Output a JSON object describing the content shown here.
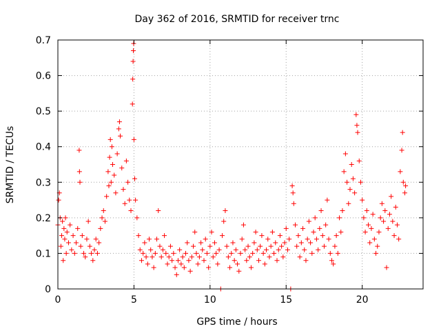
{
  "chart_data": {
    "type": "scatter",
    "title": "Day 362 of 2016, SRMTID for receiver trnc",
    "xlabel": "GPS time / hours",
    "ylabel": "SRMTID / TECUs",
    "xlim": [
      0,
      24
    ],
    "ylim": [
      0,
      0.7
    ],
    "xticks": [
      0,
      5,
      10,
      15,
      20
    ],
    "xtick_labels": [
      "0",
      "5",
      "10",
      "15",
      "20"
    ],
    "yticks": [
      0,
      0.1,
      0.2,
      0.3,
      0.4,
      0.5,
      0.6,
      0.7
    ],
    "ytick_labels": [
      "0",
      "0.1",
      "0.2",
      "0.3",
      "0.4",
      "0.5",
      "0.6",
      "0.7"
    ],
    "grid": true,
    "marker": "+",
    "series_color": "#ff0000",
    "series": [
      {
        "name": "SRMTID",
        "points": [
          [
            0.0,
            0.18
          ],
          [
            0.05,
            0.25
          ],
          [
            0.1,
            0.27
          ],
          [
            0.15,
            0.2
          ],
          [
            0.2,
            0.12
          ],
          [
            0.25,
            0.15
          ],
          [
            0.3,
            0.19
          ],
          [
            0.35,
            0.08
          ],
          [
            0.4,
            0.17
          ],
          [
            0.45,
            0.14
          ],
          [
            0.5,
            0.2
          ],
          [
            0.55,
            0.1
          ],
          [
            0.6,
            0.16
          ],
          [
            0.7,
            0.13
          ],
          [
            0.8,
            0.18
          ],
          [
            0.9,
            0.11
          ],
          [
            1.0,
            0.15
          ],
          [
            1.1,
            0.1
          ],
          [
            1.2,
            0.13
          ],
          [
            1.3,
            0.17
          ],
          [
            1.4,
            0.39
          ],
          [
            1.42,
            0.33
          ],
          [
            1.45,
            0.3
          ],
          [
            1.5,
            0.12
          ],
          [
            1.6,
            0.15
          ],
          [
            1.7,
            0.1
          ],
          [
            1.8,
            0.09
          ],
          [
            1.9,
            0.14
          ],
          [
            2.0,
            0.19
          ],
          [
            2.1,
            0.12
          ],
          [
            2.2,
            0.1
          ],
          [
            2.3,
            0.08
          ],
          [
            2.4,
            0.11
          ],
          [
            2.5,
            0.14
          ],
          [
            2.6,
            0.1
          ],
          [
            2.7,
            0.13
          ],
          [
            2.8,
            0.17
          ],
          [
            2.9,
            0.2
          ],
          [
            3.0,
            0.22
          ],
          [
            3.1,
            0.19
          ],
          [
            3.2,
            0.26
          ],
          [
            3.3,
            0.33
          ],
          [
            3.35,
            0.29
          ],
          [
            3.4,
            0.37
          ],
          [
            3.45,
            0.42
          ],
          [
            3.5,
            0.3
          ],
          [
            3.55,
            0.4
          ],
          [
            3.6,
            0.35
          ],
          [
            3.7,
            0.32
          ],
          [
            3.8,
            0.27
          ],
          [
            3.9,
            0.38
          ],
          [
            4.0,
            0.45
          ],
          [
            4.05,
            0.47
          ],
          [
            4.1,
            0.43
          ],
          [
            4.2,
            0.34
          ],
          [
            4.3,
            0.28
          ],
          [
            4.4,
            0.24
          ],
          [
            4.5,
            0.36
          ],
          [
            4.6,
            0.3
          ],
          [
            4.7,
            0.25
          ],
          [
            4.8,
            0.22
          ],
          [
            4.9,
            0.52
          ],
          [
            4.92,
            0.59
          ],
          [
            4.94,
            0.64
          ],
          [
            4.96,
            0.67
          ],
          [
            4.98,
            0.69
          ],
          [
            5.0,
            0.42
          ],
          [
            5.05,
            0.31
          ],
          [
            5.1,
            0.25
          ],
          [
            5.2,
            0.2
          ],
          [
            5.3,
            0.15
          ],
          [
            5.4,
            0.11
          ],
          [
            5.5,
            0.08
          ],
          [
            5.6,
            0.1
          ],
          [
            5.7,
            0.13
          ],
          [
            5.8,
            0.09
          ],
          [
            5.9,
            0.07
          ],
          [
            6.0,
            0.14
          ],
          [
            6.1,
            0.11
          ],
          [
            6.2,
            0.09
          ],
          [
            6.3,
            0.06
          ],
          [
            6.4,
            0.1
          ],
          [
            6.5,
            0.14
          ],
          [
            6.6,
            0.22
          ],
          [
            6.7,
            0.12
          ],
          [
            6.8,
            0.09
          ],
          [
            6.9,
            0.11
          ],
          [
            7.0,
            0.15
          ],
          [
            7.1,
            0.1
          ],
          [
            7.2,
            0.07
          ],
          [
            7.3,
            0.09
          ],
          [
            7.4,
            0.12
          ],
          [
            7.5,
            0.08
          ],
          [
            7.6,
            0.1
          ],
          [
            7.7,
            0.06
          ],
          [
            7.8,
            0.04
          ],
          [
            7.9,
            0.08
          ],
          [
            8.0,
            0.11
          ],
          [
            8.1,
            0.07
          ],
          [
            8.2,
            0.09
          ],
          [
            8.3,
            0.06
          ],
          [
            8.4,
            0.1
          ],
          [
            8.5,
            0.13
          ],
          [
            8.6,
            0.08
          ],
          [
            8.7,
            0.05
          ],
          [
            8.8,
            0.09
          ],
          [
            8.9,
            0.12
          ],
          [
            9.0,
            0.16
          ],
          [
            9.1,
            0.1
          ],
          [
            9.2,
            0.07
          ],
          [
            9.3,
            0.09
          ],
          [
            9.4,
            0.13
          ],
          [
            9.5,
            0.11
          ],
          [
            9.6,
            0.08
          ],
          [
            9.7,
            0.14
          ],
          [
            9.8,
            0.1
          ],
          [
            9.9,
            0.06
          ],
          [
            10.0,
            0.12
          ],
          [
            10.1,
            0.16
          ],
          [
            10.2,
            0.09
          ],
          [
            10.3,
            0.13
          ],
          [
            10.4,
            0.1
          ],
          [
            10.5,
            0.07
          ],
          [
            10.6,
            0.11
          ],
          [
            10.7,
            0.0
          ],
          [
            10.8,
            0.15
          ],
          [
            10.9,
            0.19
          ],
          [
            11.0,
            0.22
          ],
          [
            11.1,
            0.12
          ],
          [
            11.2,
            0.09
          ],
          [
            11.3,
            0.06
          ],
          [
            11.4,
            0.1
          ],
          [
            11.5,
            0.13
          ],
          [
            11.6,
            0.08
          ],
          [
            11.7,
            0.11
          ],
          [
            11.8,
            0.07
          ],
          [
            11.9,
            0.05
          ],
          [
            12.0,
            0.1
          ],
          [
            12.1,
            0.14
          ],
          [
            12.2,
            0.18
          ],
          [
            12.3,
            0.11
          ],
          [
            12.4,
            0.08
          ],
          [
            12.5,
            0.12
          ],
          [
            12.6,
            0.09
          ],
          [
            12.7,
            0.06
          ],
          [
            12.8,
            0.1
          ],
          [
            12.9,
            0.13
          ],
          [
            13.0,
            0.16
          ],
          [
            13.1,
            0.11
          ],
          [
            13.2,
            0.08
          ],
          [
            13.3,
            0.12
          ],
          [
            13.4,
            0.15
          ],
          [
            13.5,
            0.1
          ],
          [
            13.6,
            0.07
          ],
          [
            13.7,
            0.11
          ],
          [
            13.8,
            0.14
          ],
          [
            13.9,
            0.09
          ],
          [
            14.0,
            0.12
          ],
          [
            14.1,
            0.16
          ],
          [
            14.2,
            0.1
          ],
          [
            14.3,
            0.13
          ],
          [
            14.4,
            0.08
          ],
          [
            14.5,
            0.11
          ],
          [
            14.6,
            0.15
          ],
          [
            14.7,
            0.12
          ],
          [
            14.8,
            0.09
          ],
          [
            14.9,
            0.13
          ],
          [
            15.0,
            0.17
          ],
          [
            15.1,
            0.11
          ],
          [
            15.2,
            0.14
          ],
          [
            15.3,
            0.0
          ],
          [
            15.4,
            0.29
          ],
          [
            15.45,
            0.27
          ],
          [
            15.5,
            0.24
          ],
          [
            15.6,
            0.18
          ],
          [
            15.7,
            0.12
          ],
          [
            15.8,
            0.15
          ],
          [
            15.9,
            0.09
          ],
          [
            16.0,
            0.13
          ],
          [
            16.1,
            0.17
          ],
          [
            16.2,
            0.11
          ],
          [
            16.3,
            0.08
          ],
          [
            16.4,
            0.14
          ],
          [
            16.5,
            0.19
          ],
          [
            16.6,
            0.13
          ],
          [
            16.7,
            0.1
          ],
          [
            16.8,
            0.16
          ],
          [
            16.9,
            0.2
          ],
          [
            17.0,
            0.14
          ],
          [
            17.1,
            0.11
          ],
          [
            17.2,
            0.17
          ],
          [
            17.3,
            0.22
          ],
          [
            17.4,
            0.15
          ],
          [
            17.5,
            0.12
          ],
          [
            17.6,
            0.18
          ],
          [
            17.7,
            0.25
          ],
          [
            17.8,
            0.14
          ],
          [
            17.9,
            0.1
          ],
          [
            18.0,
            0.08
          ],
          [
            18.1,
            0.07
          ],
          [
            18.2,
            0.12
          ],
          [
            18.3,
            0.15
          ],
          [
            18.4,
            0.1
          ],
          [
            18.5,
            0.2
          ],
          [
            18.6,
            0.16
          ],
          [
            18.7,
            0.22
          ],
          [
            18.8,
            0.33
          ],
          [
            18.9,
            0.38
          ],
          [
            19.0,
            0.3
          ],
          [
            19.1,
            0.24
          ],
          [
            19.2,
            0.28
          ],
          [
            19.3,
            0.35
          ],
          [
            19.4,
            0.31
          ],
          [
            19.5,
            0.27
          ],
          [
            19.6,
            0.49
          ],
          [
            19.65,
            0.46
          ],
          [
            19.7,
            0.44
          ],
          [
            19.8,
            0.36
          ],
          [
            19.9,
            0.3
          ],
          [
            20.0,
            0.25
          ],
          [
            20.1,
            0.2
          ],
          [
            20.2,
            0.16
          ],
          [
            20.3,
            0.22
          ],
          [
            20.4,
            0.18
          ],
          [
            20.5,
            0.13
          ],
          [
            20.6,
            0.17
          ],
          [
            20.7,
            0.21
          ],
          [
            20.8,
            0.14
          ],
          [
            20.9,
            0.1
          ],
          [
            21.0,
            0.12
          ],
          [
            21.1,
            0.16
          ],
          [
            21.2,
            0.2
          ],
          [
            21.3,
            0.24
          ],
          [
            21.4,
            0.19
          ],
          [
            21.5,
            0.22
          ],
          [
            21.6,
            0.06
          ],
          [
            21.7,
            0.17
          ],
          [
            21.8,
            0.21
          ],
          [
            21.9,
            0.26
          ],
          [
            22.0,
            0.19
          ],
          [
            22.1,
            0.15
          ],
          [
            22.2,
            0.23
          ],
          [
            22.3,
            0.18
          ],
          [
            22.4,
            0.14
          ],
          [
            22.5,
            0.33
          ],
          [
            22.6,
            0.39
          ],
          [
            22.65,
            0.44
          ],
          [
            22.7,
            0.3
          ],
          [
            22.8,
            0.27
          ],
          [
            22.85,
            0.29
          ]
        ]
      }
    ]
  }
}
